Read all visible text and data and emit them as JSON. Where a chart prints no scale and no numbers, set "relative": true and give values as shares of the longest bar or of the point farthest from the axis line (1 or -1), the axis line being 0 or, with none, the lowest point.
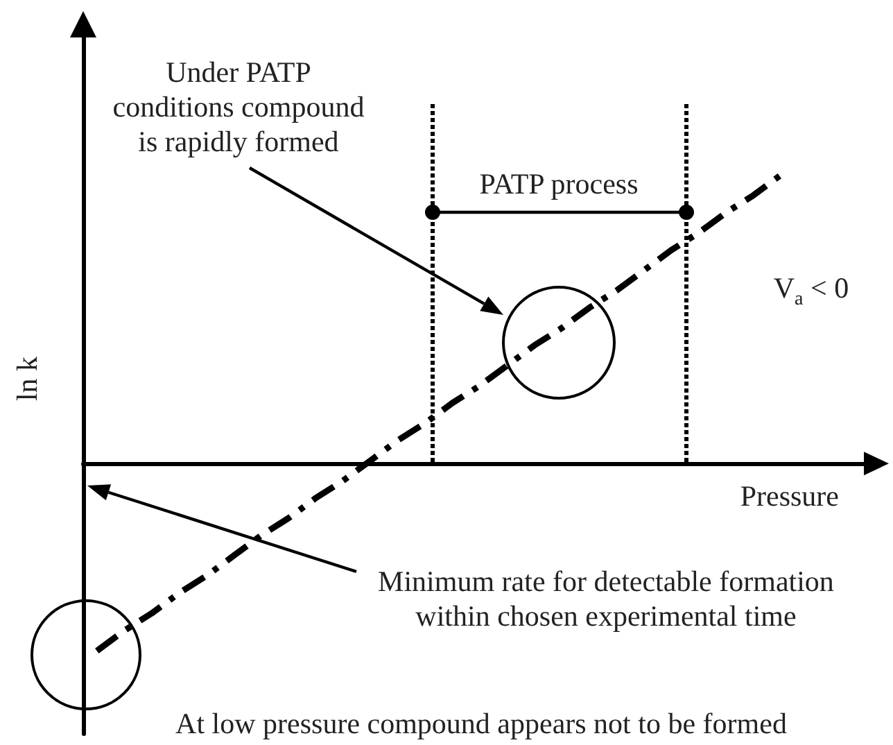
{
  "chart_data": {
    "type": "line",
    "relative": true,
    "xlabel": "Pressure",
    "ylabel": "ln k",
    "categories": [
      null,
      null,
      null,
      null,
      null,
      null,
      null,
      null,
      null,
      null,
      null,
      null,
      null,
      null,
      null,
      null,
      null,
      null,
      null,
      null,
      null,
      null,
      null,
      null,
      null,
      null,
      null,
      null,
      null
    ],
    "series": [
      {
        "color": "#000000",
        "values": [
          -0.65,
          -0.58,
          -0.52,
          -0.45,
          -0.39,
          -0.32,
          -0.25,
          -0.19,
          -0.12,
          -0.06,
          0.01,
          0.08,
          0.14,
          0.21,
          0.27,
          0.34,
          0.41,
          0.47,
          0.54,
          0.6,
          0.67,
          0.74,
          0.8,
          0.87,
          0.93,
          1,
          null,
          null,
          null
        ]
      }
    ],
    "line_style": "dashed",
    "marker": "none",
    "annotations": [
      "Under PATP conditions compound is rapidly formed",
      "PATP process",
      "V$_{a}$ < 0",
      "Minimum rate for detectable formation within chosen experimental time",
      "At low pressure compound appears not to be formed"
    ]
  }
}
